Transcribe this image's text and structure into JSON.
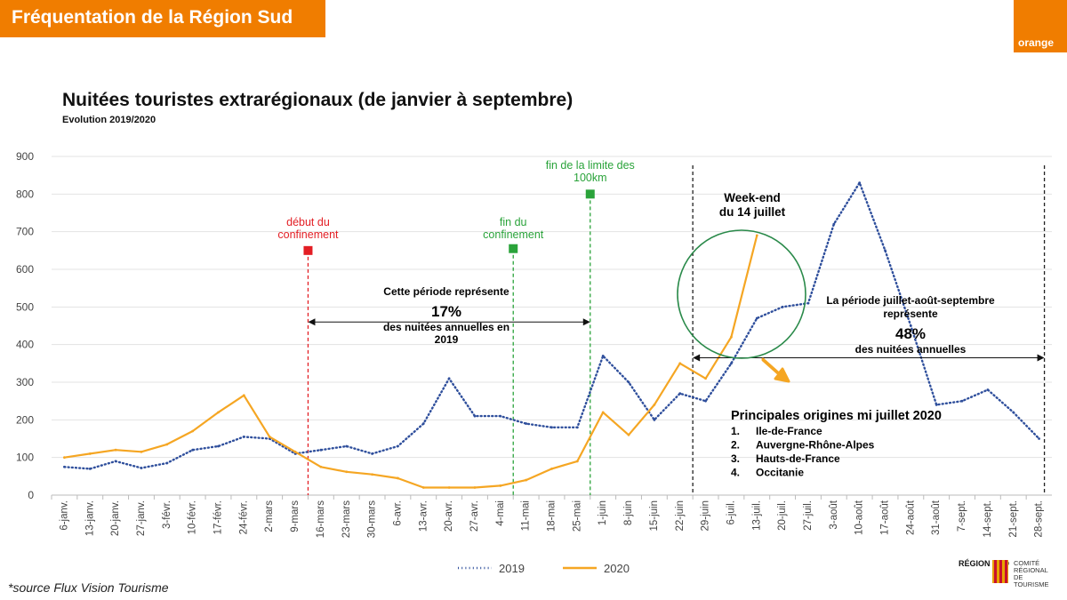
{
  "header": {
    "title": "Fréquentation de la Région Sud"
  },
  "brand": {
    "logo_text": "orange",
    "color": "#f07d00"
  },
  "footer": {
    "source": "*source Flux Vision Tourisme",
    "crt_region": "RÉGION SUD",
    "crt_label": "COMITÉ RÉGIONAL DE TOURISME"
  },
  "chart_data": {
    "type": "line",
    "title": "Nuitées touristes extrarégionaux (de janvier à septembre)",
    "subtitle": "Evolution 2019/2020",
    "ylim": [
      0,
      900
    ],
    "yticks": [
      0,
      100,
      200,
      300,
      400,
      500,
      600,
      700,
      800,
      900
    ],
    "grid": true,
    "legend_position": "bottom",
    "categories": [
      "6-janv.",
      "13-janv.",
      "20-janv.",
      "27-janv.",
      "3-févr.",
      "10-févr.",
      "17-févr.",
      "24-févr.",
      "2-mars",
      "9-mars",
      "16-mars",
      "23-mars",
      "30-mars",
      "6-avr.",
      "13-avr.",
      "20-avr.",
      "27-avr.",
      "4-mai",
      "11-mai",
      "18-mai",
      "25-mai",
      "1-juin",
      "8-juin",
      "15-juin",
      "22-juin",
      "29-juin",
      "6-juil.",
      "13-juil.",
      "20-juil.",
      "27-juil.",
      "3-août",
      "10-août",
      "17-août",
      "24-août",
      "31-août",
      "7-sept.",
      "14-sept.",
      "21-sept.",
      "28-sept."
    ],
    "series": [
      {
        "name": "2019",
        "color": "#2f4f9c",
        "style": "dotted",
        "values": [
          75,
          70,
          90,
          72,
          85,
          120,
          130,
          155,
          150,
          110,
          120,
          130,
          110,
          130,
          190,
          310,
          210,
          210,
          190,
          180,
          180,
          370,
          300,
          200,
          270,
          250,
          350,
          470,
          500,
          510,
          720,
          830,
          650,
          450,
          240,
          250,
          280,
          220,
          150
        ]
      },
      {
        "name": "2020",
        "color": "#f5a623",
        "style": "solid",
        "values": [
          100,
          110,
          120,
          115,
          135,
          170,
          220,
          265,
          155,
          115,
          75,
          62,
          55,
          45,
          20,
          20,
          20,
          25,
          40,
          70,
          90,
          220,
          160,
          240,
          350,
          310,
          420,
          690,
          null,
          null,
          null,
          null,
          null,
          null,
          null,
          null,
          null,
          null,
          null
        ]
      }
    ],
    "annotations": {
      "debut_confinement": "début du\nconfinement",
      "fin_confinement": "fin du\nconfinement",
      "fin_100km": "fin de la limite des\n100km",
      "weekend": "Week-end\ndu 14 juillet",
      "period1_a": "Cette période représente",
      "period1_pct": "17%",
      "period1_b": "des nuitées annuelles en\n2019",
      "period2_a": "La période juillet-août-septembre\nreprésente",
      "period2_pct": "48%",
      "period2_b": "des nuitées annuelles",
      "origins_title": "Principales origines mi juillet 2020",
      "origins": [
        "Ile-de-France",
        "Auvergne-Rhône-Alpes",
        "Hauts-de-France",
        "Occitanie"
      ]
    }
  }
}
